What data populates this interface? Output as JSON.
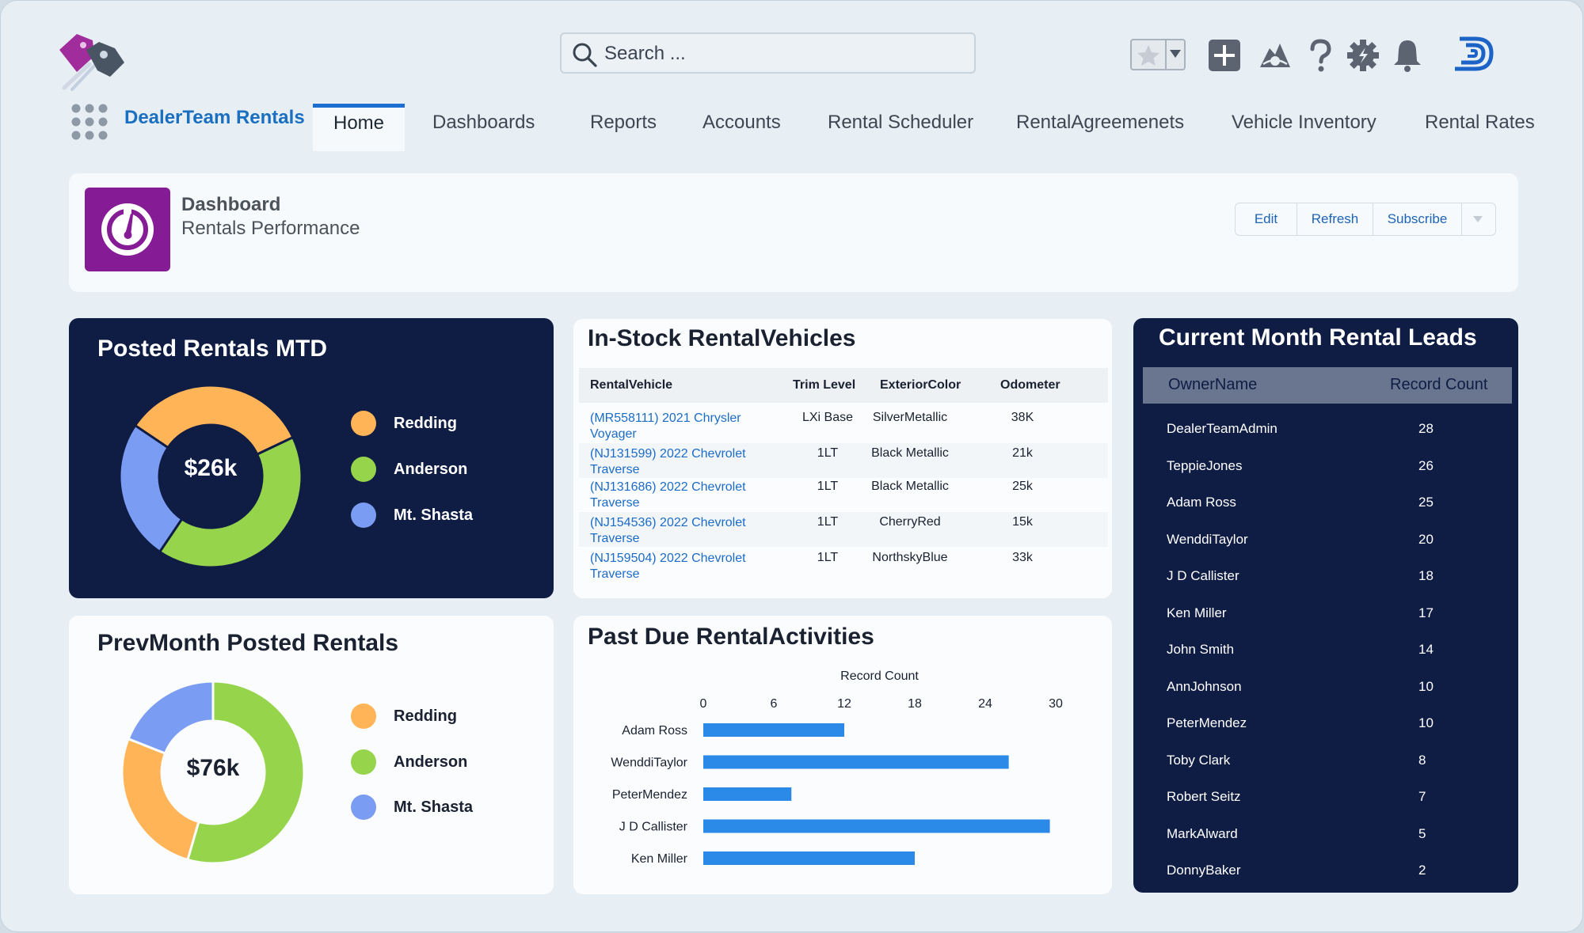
{
  "app": {
    "name": "DealerTeam Rentals",
    "search_placeholder": "Search ..."
  },
  "header_icons": [
    "favorites-star-icon",
    "add-icon",
    "trailhead-icon",
    "help-icon",
    "setup-gear-icon",
    "notifications-bell-icon",
    "dealerteam-logo-icon"
  ],
  "nav": {
    "tabs": [
      {
        "label": "Home",
        "active": true
      },
      {
        "label": "Dashboards"
      },
      {
        "label": "Reports"
      },
      {
        "label": "Accounts"
      },
      {
        "label": "Rental Scheduler"
      },
      {
        "label": "RentalAgreemenets"
      },
      {
        "label": "Vehicle Inventory"
      },
      {
        "label": "Rental Rates"
      }
    ]
  },
  "dashboard": {
    "title": "Dashboard",
    "subtitle": "Rentals Performance",
    "buttons": {
      "edit": "Edit",
      "refresh": "Refresh",
      "subscribe": "Subscribe"
    }
  },
  "colors": {
    "redding": "#ffb457",
    "anderson": "#95d44b",
    "mt_shasta": "#7b9cf3",
    "bar": "#2b8ae8",
    "navy": "#0f1c44"
  },
  "posted_mtd": {
    "title": "Posted Rentals MTD",
    "center": "$26k",
    "legend": [
      "Redding",
      "Anderson",
      "Mt. Shasta"
    ],
    "chart_data": {
      "type": "pie",
      "labels": [
        "Redding",
        "Anderson",
        "Mt. Shasta"
      ],
      "values": [
        0.335,
        0.415,
        0.25
      ]
    }
  },
  "prev_month": {
    "title": "PrevMonth Posted Rentals",
    "center": "$76k",
    "legend": [
      "Redding",
      "Anderson",
      "Mt. Shasta"
    ],
    "chart_data": {
      "type": "pie",
      "labels": [
        "Anderson",
        "Redding",
        "Mt. Shasta"
      ],
      "values": [
        0.545,
        0.265,
        0.19
      ]
    }
  },
  "in_stock": {
    "title": "In-Stock RentalVehicles",
    "columns": [
      "RentalVehicle",
      "Trim Level",
      "ExteriorColor",
      "Odometer"
    ],
    "rows": [
      {
        "vehicle": "(MR558111) 2021 Chrysler Voyager",
        "trim": "LXi Base",
        "color": "SilverMetallic",
        "odometer": "38K"
      },
      {
        "vehicle": "(NJ131599) 2022 Chevrolet Traverse",
        "trim": "1LT",
        "color": "Black Metallic",
        "odometer": "21k"
      },
      {
        "vehicle": "(NJ131686) 2022 Chevrolet Traverse",
        "trim": "1LT",
        "color": "Black Metallic",
        "odometer": "25k"
      },
      {
        "vehicle": "(NJ154536) 2022 Chevrolet Traverse",
        "trim": "1LT",
        "color": "CherryRed",
        "odometer": "15k"
      },
      {
        "vehicle": "(NJ159504) 2022 Chevrolet Traverse",
        "trim": "1LT",
        "color": "NorthskyBlue",
        "odometer": "33k"
      }
    ]
  },
  "past_due": {
    "title": "Past Due RentalActivities",
    "chart_data": {
      "type": "bar",
      "orientation": "horizontal",
      "xlabel": "Record Count",
      "xlim": [
        0,
        30
      ],
      "xticks": [
        0,
        6,
        12,
        18,
        24,
        30
      ],
      "categories": [
        "Adam Ross",
        "WenddiTaylor",
        "PeterMendez",
        "J D Callister",
        "Ken Miller"
      ],
      "values": [
        12,
        26,
        7.5,
        29.5,
        18
      ]
    }
  },
  "leads": {
    "title": "Current Month Rental Leads",
    "columns": [
      "OwnerName",
      "Record Count"
    ],
    "rows": [
      {
        "name": "DealerTeamAdmin",
        "count": "28"
      },
      {
        "name": "TeppieJones",
        "count": "26"
      },
      {
        "name": "Adam Ross",
        "count": "25"
      },
      {
        "name": "WenddiTaylor",
        "count": "20"
      },
      {
        "name": "J D Callister",
        "count": "18"
      },
      {
        "name": "Ken Miller",
        "count": "17"
      },
      {
        "name": "John Smith",
        "count": "14"
      },
      {
        "name": "AnnJohnson",
        "count": "10"
      },
      {
        "name": "PeterMendez",
        "count": "10"
      },
      {
        "name": "Toby Clark",
        "count": "8"
      },
      {
        "name": "Robert Seitz",
        "count": "7"
      },
      {
        "name": "MarkAlward",
        "count": "5"
      },
      {
        "name": "DonnyBaker",
        "count": "2"
      }
    ]
  }
}
